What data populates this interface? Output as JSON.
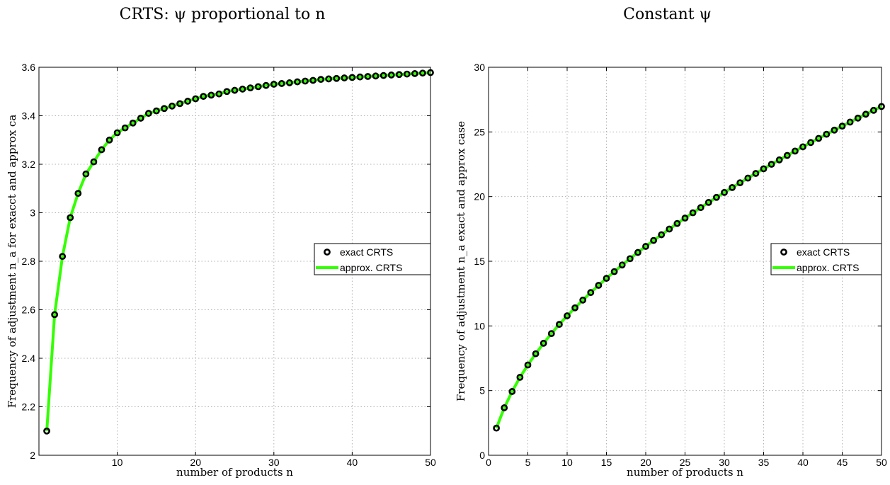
{
  "chart_data": [
    {
      "type": "line",
      "title": "CRTS: ψ proportional to n",
      "xlabel": "number of products n",
      "ylabel": "Frequency of adjustment n_a for exacct and approx ca",
      "xlim": [
        0,
        50
      ],
      "ylim": [
        2,
        3.6
      ],
      "xticks": [
        "10",
        "20",
        "30",
        "40",
        "50"
      ],
      "yticks": [
        "2",
        "2.2",
        "2.4",
        "2.6",
        "2.8",
        "3",
        "3.2",
        "3.4",
        "3.6"
      ],
      "grid": true,
      "legend_position": "center-right",
      "series": [
        {
          "name": "exact CRTS",
          "style": "markers",
          "x": [
            1,
            2,
            3,
            4,
            5,
            6,
            7,
            8,
            9,
            10,
            11,
            12,
            13,
            14,
            15,
            16,
            17,
            18,
            19,
            20,
            21,
            22,
            23,
            24,
            25,
            26,
            27,
            28,
            29,
            30,
            31,
            32,
            33,
            34,
            35,
            36,
            37,
            38,
            39,
            40,
            41,
            42,
            43,
            44,
            45,
            46,
            47,
            48,
            49,
            50
          ],
          "y": [
            2.1,
            2.58,
            2.82,
            2.98,
            3.08,
            3.16,
            3.21,
            3.26,
            3.3,
            3.33,
            3.35,
            3.37,
            3.39,
            3.41,
            3.42,
            3.43,
            3.44,
            3.45,
            3.46,
            3.47,
            3.48,
            3.485,
            3.49,
            3.5,
            3.505,
            3.51,
            3.515,
            3.52,
            3.525,
            3.53,
            3.533,
            3.536,
            3.54,
            3.543,
            3.546,
            3.55,
            3.552,
            3.554,
            3.556,
            3.558,
            3.56,
            3.562,
            3.564,
            3.566,
            3.568,
            3.57,
            3.572,
            3.574,
            3.576,
            3.578
          ]
        },
        {
          "name": "approx. CRTS",
          "style": "line",
          "x": [
            1,
            2,
            3,
            4,
            5,
            6,
            7,
            8,
            9,
            10,
            11,
            12,
            13,
            14,
            15,
            16,
            17,
            18,
            19,
            20,
            21,
            22,
            23,
            24,
            25,
            26,
            27,
            28,
            29,
            30,
            31,
            32,
            33,
            34,
            35,
            36,
            37,
            38,
            39,
            40,
            41,
            42,
            43,
            44,
            45,
            46,
            47,
            48,
            49,
            50
          ],
          "y": [
            2.1,
            2.58,
            2.82,
            2.98,
            3.08,
            3.16,
            3.21,
            3.26,
            3.3,
            3.33,
            3.35,
            3.37,
            3.39,
            3.41,
            3.42,
            3.43,
            3.44,
            3.45,
            3.46,
            3.47,
            3.48,
            3.485,
            3.49,
            3.5,
            3.505,
            3.51,
            3.515,
            3.52,
            3.525,
            3.53,
            3.533,
            3.536,
            3.54,
            3.543,
            3.546,
            3.55,
            3.552,
            3.554,
            3.556,
            3.558,
            3.56,
            3.562,
            3.564,
            3.566,
            3.568,
            3.57,
            3.572,
            3.574,
            3.576,
            3.578
          ]
        }
      ]
    },
    {
      "type": "line",
      "title": "Constant ψ",
      "xlabel": "number of products n",
      "ylabel": "Frequency of adjustment n_a exact and approx case",
      "xlim": [
        0,
        50
      ],
      "ylim": [
        0,
        30
      ],
      "xticks": [
        "0",
        "5",
        "10",
        "15",
        "20",
        "25",
        "30",
        "35",
        "40",
        "45",
        "50"
      ],
      "yticks": [
        "0",
        "5",
        "10",
        "15",
        "20",
        "25",
        "30"
      ],
      "grid": true,
      "legend_position": "center-right",
      "series": [
        {
          "name": "exact CRTS",
          "style": "markers",
          "x": [
            1,
            2,
            3,
            4,
            5,
            6,
            7,
            8,
            9,
            10,
            11,
            12,
            13,
            14,
            15,
            16,
            17,
            18,
            19,
            20,
            21,
            22,
            23,
            24,
            25,
            26,
            27,
            28,
            29,
            30,
            31,
            32,
            33,
            34,
            35,
            36,
            37,
            38,
            39,
            40,
            41,
            42,
            43,
            44,
            45,
            46,
            47,
            48,
            49,
            50
          ],
          "y": [
            2.1,
            3.67,
            4.93,
            6.03,
            6.98,
            7.85,
            8.66,
            9.41,
            10.12,
            10.78,
            11.4,
            12.0,
            12.58,
            13.14,
            13.68,
            14.2,
            14.71,
            15.2,
            15.68,
            16.15,
            16.61,
            17.05,
            17.49,
            17.92,
            18.34,
            18.75,
            19.15,
            19.55,
            19.94,
            20.32,
            20.7,
            21.07,
            21.43,
            21.79,
            22.15,
            22.5,
            22.84,
            23.18,
            23.52,
            23.85,
            24.18,
            24.5,
            24.82,
            25.14,
            25.45,
            25.76,
            26.07,
            26.37,
            26.67,
            26.97
          ]
        },
        {
          "name": "approx. CRTS",
          "style": "line",
          "x": [
            1,
            2,
            3,
            4,
            5,
            6,
            7,
            8,
            9,
            10,
            11,
            12,
            13,
            14,
            15,
            16,
            17,
            18,
            19,
            20,
            21,
            22,
            23,
            24,
            25,
            26,
            27,
            28,
            29,
            30,
            31,
            32,
            33,
            34,
            35,
            36,
            37,
            38,
            39,
            40,
            41,
            42,
            43,
            44,
            45,
            46,
            47,
            48,
            49,
            50
          ],
          "y": [
            2.1,
            3.67,
            4.93,
            6.03,
            6.98,
            7.85,
            8.66,
            9.41,
            10.12,
            10.78,
            11.4,
            12.0,
            12.58,
            13.14,
            13.68,
            14.2,
            14.71,
            15.2,
            15.68,
            16.15,
            16.61,
            17.05,
            17.49,
            17.92,
            18.34,
            18.75,
            19.15,
            19.55,
            19.94,
            20.32,
            20.7,
            21.07,
            21.43,
            21.79,
            22.15,
            22.5,
            22.84,
            23.18,
            23.52,
            23.85,
            24.18,
            24.5,
            24.82,
            25.14,
            25.45,
            25.76,
            26.07,
            26.37,
            26.67,
            26.97
          ]
        }
      ]
    }
  ],
  "colors": {
    "marker_edge": "#000000",
    "line": "#33ff00",
    "grid": "#b0b0b0"
  }
}
